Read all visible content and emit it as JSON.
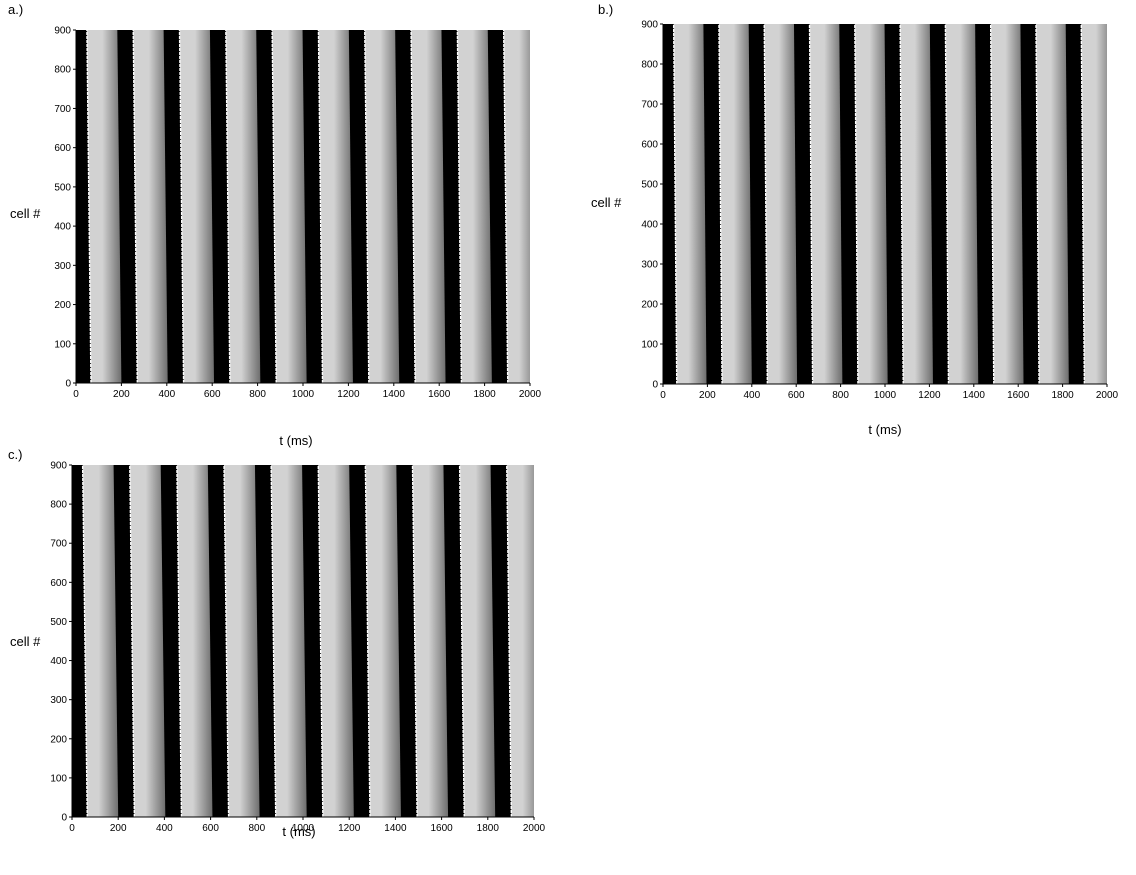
{
  "chart_data": [
    {
      "type": "heatmap",
      "panel_label": "a.)",
      "xlabel": "t (ms)",
      "ylabel": "cell #",
      "xlim": [
        0,
        2000
      ],
      "ylim": [
        0,
        900
      ],
      "xticks": [
        0,
        200,
        400,
        600,
        800,
        1000,
        1200,
        1400,
        1600,
        1800,
        2000
      ],
      "yticks": [
        0,
        100,
        200,
        300,
        400,
        500,
        600,
        700,
        800,
        900
      ],
      "wavefronts": {
        "period_ms": 204,
        "t_at_cell0": [
          66,
          270,
          474,
          678,
          882,
          1086,
          1290,
          1494,
          1698,
          1902
        ],
        "t_at_cell900": [
          -156,
          48,
          252,
          456,
          660,
          864,
          1068,
          1272,
          1476,
          1680,
          1884
        ],
        "dark_band_ms": 70,
        "colors": {
          "dark": "#000000",
          "peak": "#d2d2d2",
          "late": "#6e6e6e",
          "front": "#ffffff"
        }
      }
    },
    {
      "type": "heatmap",
      "panel_label": "b.)",
      "xlabel": "t (ms)",
      "ylabel": "cell #",
      "xlim": [
        0,
        2000
      ],
      "ylim": [
        0,
        900
      ],
      "xticks": [
        0,
        200,
        400,
        600,
        800,
        1000,
        1200,
        1400,
        1600,
        1800,
        2000
      ],
      "yticks": [
        0,
        100,
        200,
        300,
        400,
        500,
        600,
        700,
        800,
        900
      ],
      "wavefronts": {
        "period_ms": 204,
        "t_at_cell0": [
          62,
          266,
          470,
          674,
          878,
          1082,
          1286,
          1490,
          1694,
          1898
        ],
        "t_at_cell900": [
          -156,
          48,
          252,
          456,
          660,
          864,
          1068,
          1272,
          1476,
          1680,
          1884
        ],
        "dark_band_ms": 70,
        "colors": {
          "dark": "#000000",
          "peak": "#d2d2d2",
          "late": "#6e6e6e",
          "front": "#ffffff"
        }
      }
    },
    {
      "type": "heatmap",
      "panel_label": "c.)",
      "xlabel": "t (ms)",
      "ylabel": "cell #",
      "xlim": [
        0,
        2000
      ],
      "ylim": [
        0,
        900
      ],
      "xticks": [
        0,
        200,
        400,
        600,
        800,
        1000,
        1200,
        1400,
        1600,
        1800,
        2000
      ],
      "yticks": [
        0,
        100,
        200,
        300,
        400,
        500,
        600,
        700,
        800,
        900
      ],
      "wavefronts": {
        "period_ms": 204,
        "t_at_cell0": [
          66,
          270,
          474,
          678,
          882,
          1086,
          1290,
          1494,
          1698,
          1902
        ],
        "t_at_cell900": [
          -158,
          46,
          250,
          454,
          658,
          862,
          1066,
          1270,
          1474,
          1678,
          1882
        ],
        "dark_band_ms": 70,
        "colors": {
          "dark": "#000000",
          "peak": "#d2d2d2",
          "late": "#6e6e6e",
          "front": "#ffffff"
        }
      }
    }
  ]
}
